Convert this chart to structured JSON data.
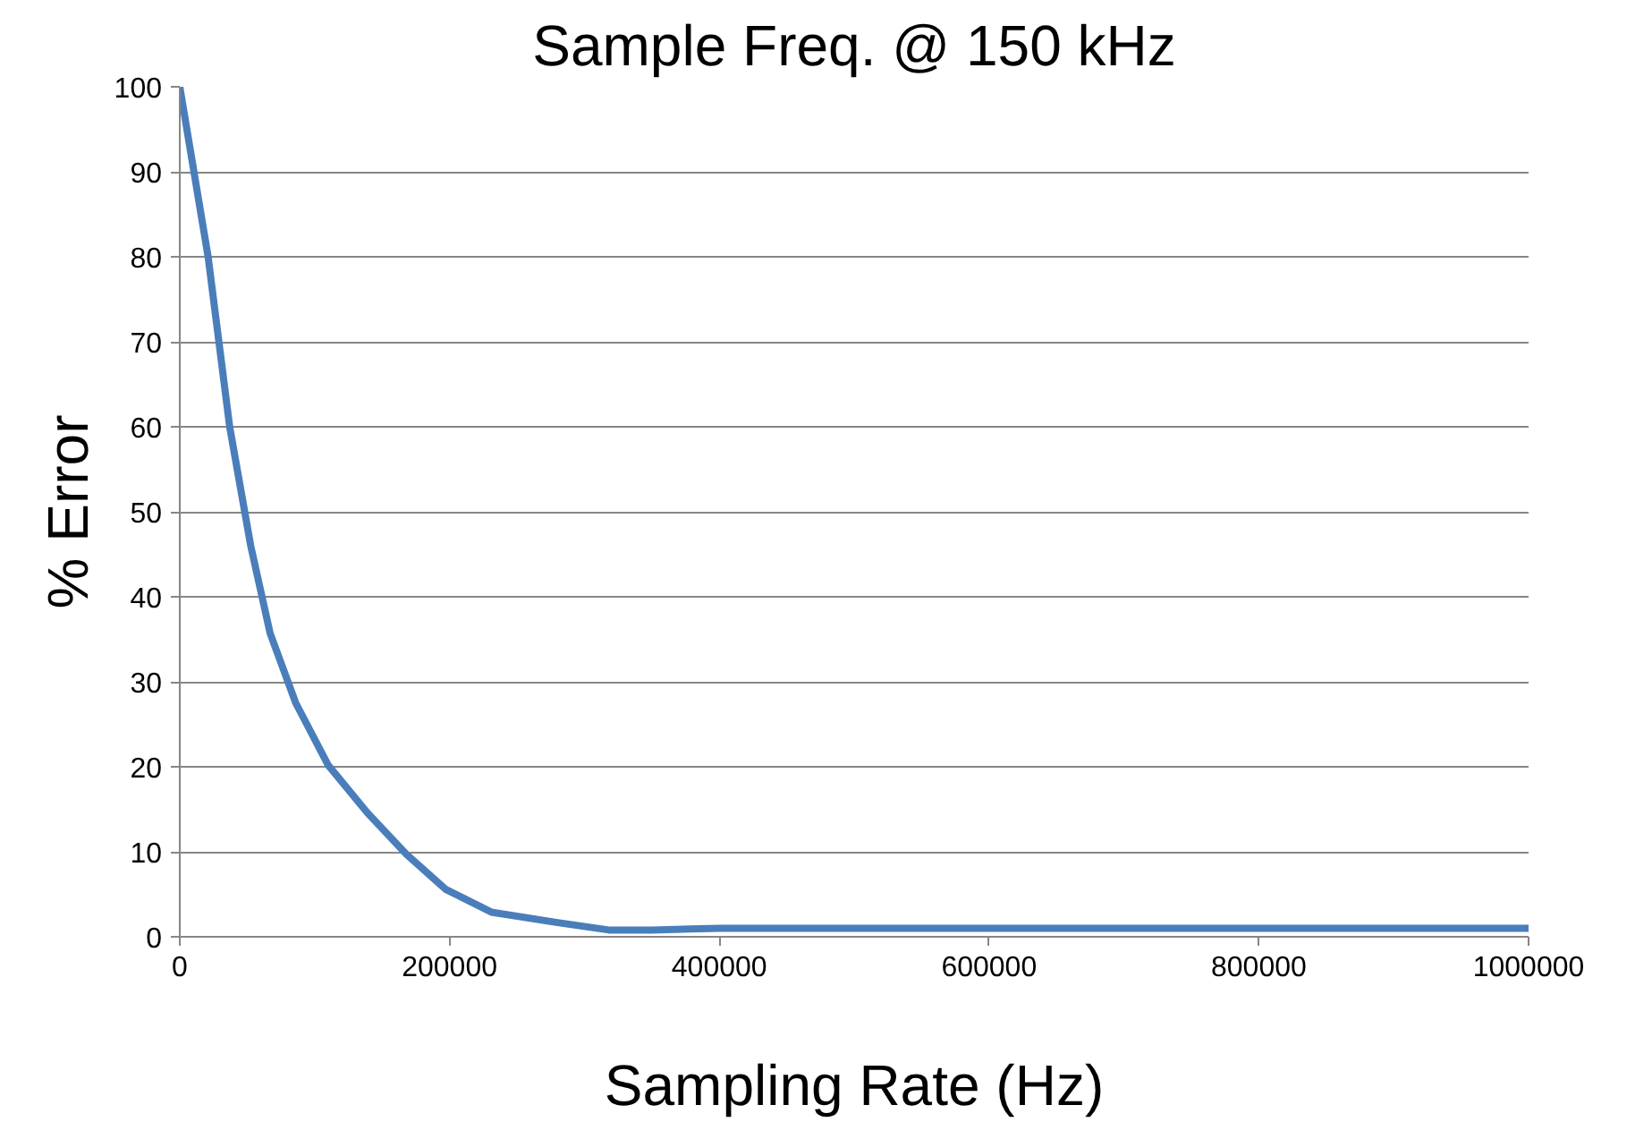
{
  "chart_data": {
    "type": "line",
    "title": "Sample Freq. @ 150 kHz",
    "xlabel": "Sampling Rate (Hz)",
    "ylabel": "% Error",
    "x": [
      0,
      21000,
      37000,
      52600,
      67000,
      86000,
      110000,
      139000,
      168000,
      197000,
      231000,
      279000,
      318000,
      350000,
      400000,
      600000,
      800000,
      1000000
    ],
    "series": [
      {
        "color": "#4a7ebb",
        "values": [
          100,
          80,
          60,
          46,
          35.7,
          27.5,
          20.2,
          14.6,
          9.7,
          5.6,
          2.9,
          1.7,
          0.8,
          0.8,
          1,
          1,
          1,
          1
        ]
      }
    ],
    "xlim": [
      0,
      1000000
    ],
    "xticks": [
      0,
      200000,
      400000,
      600000,
      800000,
      1000000
    ],
    "ylim": [
      0,
      100
    ],
    "yticks": [
      0,
      10,
      20,
      30,
      40,
      50,
      60,
      70,
      80,
      90,
      100
    ],
    "grid": "y",
    "marker": "none",
    "line_style": "solid"
  }
}
